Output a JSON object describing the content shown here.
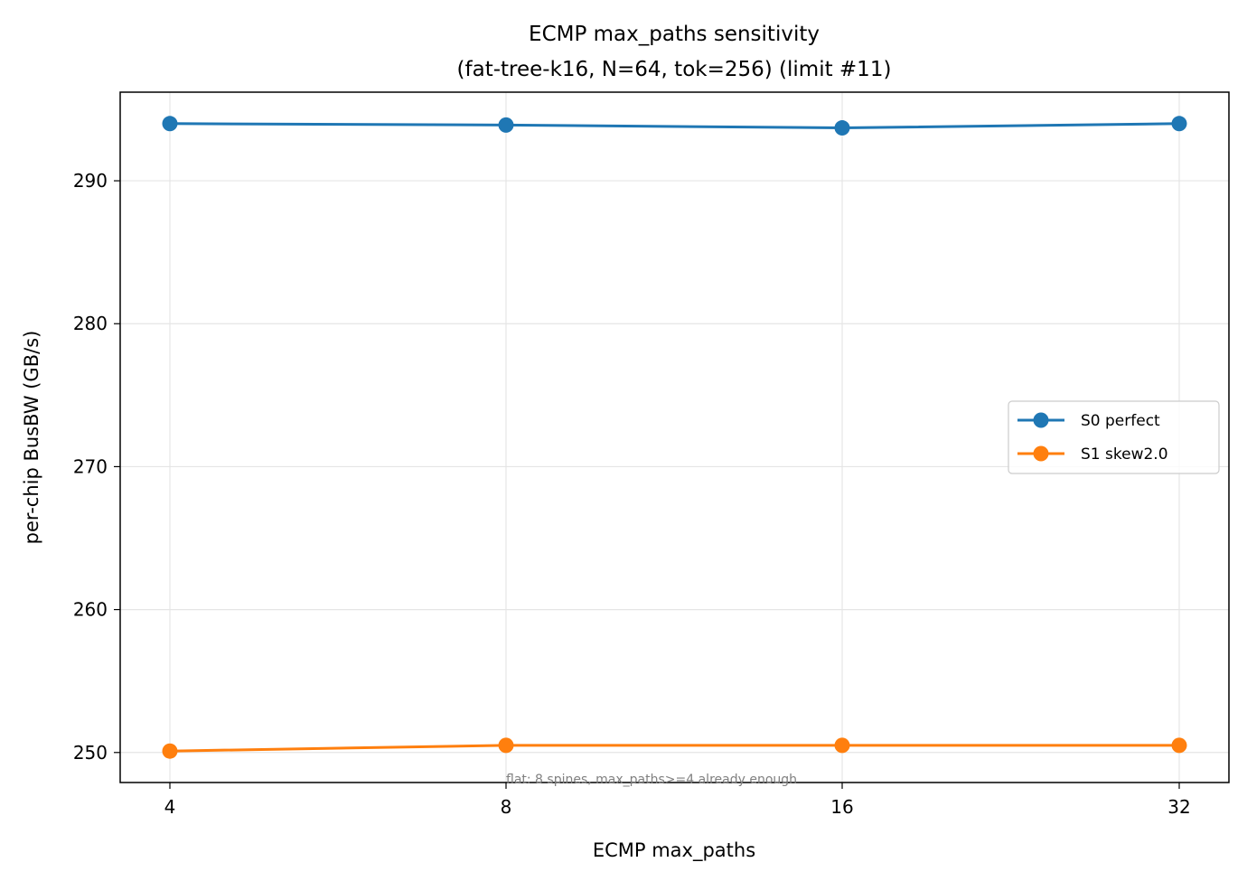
{
  "chart_data": {
    "type": "line",
    "title": "ECMP max_paths sensitivity",
    "subtitle": "(fat-tree-k16, N=64, tok=256) (limit #11)",
    "xlabel": "ECMP max_paths",
    "ylabel": "per-chip BusBW (GB/s)",
    "x": [
      4,
      8,
      16,
      32
    ],
    "x_tick_labels": [
      "4",
      "8",
      "16",
      "32"
    ],
    "x_scale": "categorical-positions",
    "y_ticks": [
      250,
      260,
      270,
      280,
      290
    ],
    "ylim": [
      247.9,
      296.2
    ],
    "grid": true,
    "legend_position": "center-right",
    "series": [
      {
        "name": "S0 perfect",
        "color": "#1f77b4",
        "values": [
          294.0,
          293.9,
          293.7,
          294.0
        ]
      },
      {
        "name": "S1 skew2.0",
        "color": "#ff7f0e",
        "values": [
          250.1,
          250.5,
          250.5,
          250.5
        ]
      }
    ],
    "annotation": "flat: 8 spines, max_paths>=4 already enough"
  }
}
